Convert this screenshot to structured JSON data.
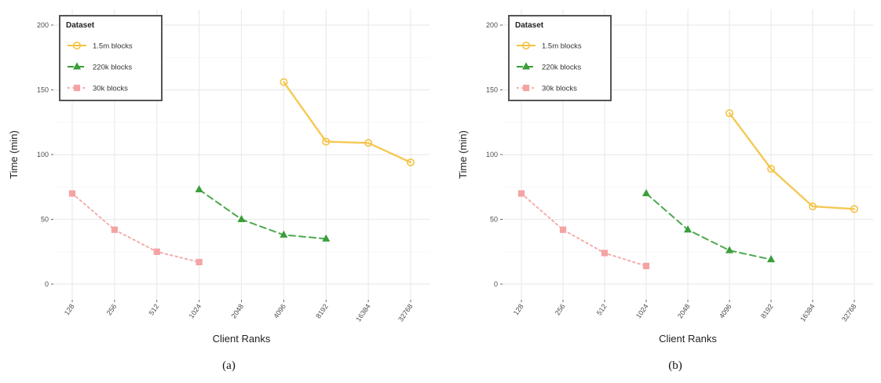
{
  "chart_data": [
    {
      "type": "line",
      "caption": "(a)",
      "xlabel": "Client Ranks",
      "ylabel": "Time (min)",
      "categories": [
        "128",
        "256",
        "512",
        "1024",
        "2048",
        "4096",
        "8192",
        "16384",
        "32768"
      ],
      "y_ticks": [
        "0",
        "50",
        "100",
        "150",
        "200"
      ],
      "ylim": [
        0,
        200
      ],
      "grid": true,
      "legend": {
        "title": "Dataset",
        "position": "top-left"
      },
      "series": [
        {
          "name": "1.5m blocks",
          "color": "#f5c242",
          "dash": "solid",
          "values": [
            null,
            null,
            null,
            null,
            null,
            156,
            110,
            109,
            94
          ]
        },
        {
          "name": "220k blocks",
          "color": "#3a9e3a",
          "dash": "long-dash",
          "values": [
            null,
            null,
            null,
            73,
            50,
            38,
            35,
            null,
            null
          ]
        },
        {
          "name": "30k blocks",
          "color": "#f4a3a3",
          "dash": "dotted",
          "values": [
            70,
            42,
            25,
            17,
            null,
            null,
            null,
            null,
            null
          ]
        }
      ]
    },
    {
      "type": "line",
      "caption": "(b)",
      "xlabel": "Client Ranks",
      "ylabel": "Time (min)",
      "categories": [
        "128",
        "256",
        "512",
        "1024",
        "2048",
        "4096",
        "8192",
        "16384",
        "32768"
      ],
      "y_ticks": [
        "0",
        "50",
        "100",
        "150",
        "200"
      ],
      "ylim": [
        0,
        200
      ],
      "grid": true,
      "legend": {
        "title": "Dataset",
        "position": "top-left"
      },
      "series": [
        {
          "name": "1.5m blocks",
          "color": "#f5c242",
          "dash": "solid",
          "values": [
            null,
            null,
            null,
            null,
            null,
            132,
            89,
            60,
            58
          ]
        },
        {
          "name": "220k blocks",
          "color": "#3a9e3a",
          "dash": "long-dash",
          "values": [
            null,
            null,
            null,
            70,
            42,
            26,
            19,
            null,
            null
          ]
        },
        {
          "name": "30k blocks",
          "color": "#f4a3a3",
          "dash": "dotted",
          "values": [
            70,
            42,
            24,
            14,
            null,
            null,
            null,
            null,
            null
          ]
        }
      ]
    }
  ]
}
